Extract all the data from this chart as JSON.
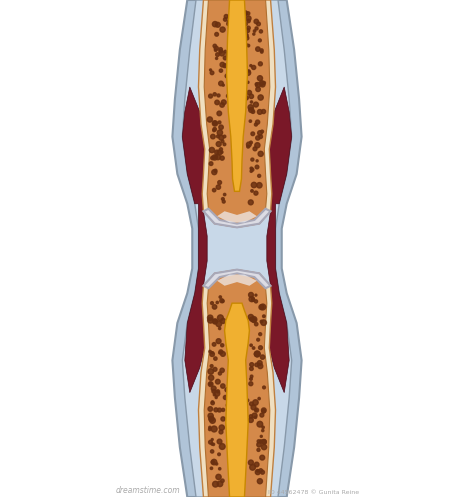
{
  "bg_color": "#ffffff",
  "outer_capsule_color1": "#c8d8e8",
  "outer_capsule_color2": "#b0c4d8",
  "outer_capsule_edge": "#8899aa",
  "bone_color": "#d4894a",
  "bone_light": "#e8a870",
  "bone_periosteum": "#f0dfc0",
  "bone_dots_color": "#6a3010",
  "marrow_upper_color": "#f0b030",
  "marrow_lower_color": "#f0b030",
  "marrow_edge": "#c88800",
  "cartilage_color": "#dcdce4",
  "cartilage_shine": "#f0f0f4",
  "cartilage_edge": "#a8a8b8",
  "synovial_color": "#7a1828",
  "synovial_edge": "#4a0818",
  "joint_fluid_color": "#c0a888",
  "figsize": [
    4.74,
    4.97
  ],
  "dpi": 100
}
